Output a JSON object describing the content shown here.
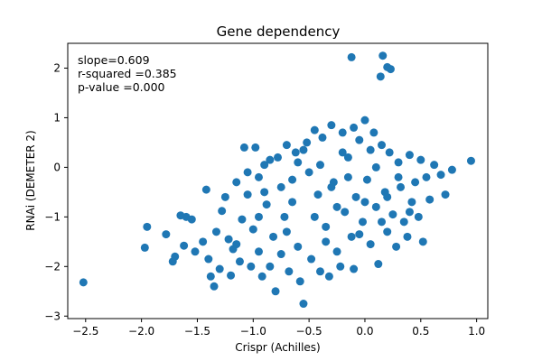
{
  "chart_data": {
    "type": "scatter",
    "title": "Gene dependency",
    "xlabel": "Crispr (Achilles)",
    "ylabel": "RNAi (DEMETER 2)",
    "xlim": [
      -2.66,
      1.1
    ],
    "ylim": [
      -3.05,
      2.5
    ],
    "xticks": [
      -2.5,
      -2.0,
      -1.5,
      -1.0,
      -0.5,
      0.0,
      0.5,
      1.0
    ],
    "xtick_labels": [
      "−2.5",
      "−2.0",
      "−1.5",
      "−1.0",
      "−0.5",
      "0.0",
      "0.5",
      "1.0"
    ],
    "yticks": [
      -3,
      -2,
      -1,
      0,
      1,
      2
    ],
    "ytick_labels": [
      "−3",
      "−2",
      "−1",
      "0",
      "1",
      "2"
    ],
    "grid": false,
    "marker_color": "#1f77b4",
    "annotations": [
      "slope=0.609",
      "r-squared =0.385",
      "p-value =0.000"
    ],
    "points": [
      [
        -2.52,
        -2.32
      ],
      [
        -1.97,
        -1.62
      ],
      [
        -1.95,
        -1.2
      ],
      [
        -1.78,
        -1.35
      ],
      [
        -1.72,
        -1.9
      ],
      [
        -1.7,
        -1.8
      ],
      [
        -1.65,
        -0.97
      ],
      [
        -1.6,
        -1.0
      ],
      [
        -1.62,
        -1.58
      ],
      [
        -1.55,
        -1.05
      ],
      [
        -1.52,
        -1.7
      ],
      [
        -1.45,
        -1.5
      ],
      [
        -1.42,
        -0.45
      ],
      [
        -1.4,
        -1.85
      ],
      [
        -1.38,
        -2.2
      ],
      [
        -1.35,
        -2.4
      ],
      [
        -1.33,
        -1.3
      ],
      [
        -1.3,
        -2.05
      ],
      [
        -1.28,
        -0.88
      ],
      [
        -1.25,
        -0.6
      ],
      [
        -1.22,
        -1.45
      ],
      [
        -1.2,
        -2.18
      ],
      [
        -1.18,
        -1.65
      ],
      [
        -1.15,
        -0.3
      ],
      [
        -1.12,
        -1.9
      ],
      [
        -1.1,
        -1.05
      ],
      [
        -1.08,
        0.4
      ],
      [
        -1.05,
        -0.55
      ],
      [
        -1.02,
        -2.0
      ],
      [
        -1.0,
        -1.25
      ],
      [
        -0.98,
        0.4
      ],
      [
        -0.95,
        -0.2
      ],
      [
        -0.95,
        -1.7
      ],
      [
        -0.92,
        -2.2
      ],
      [
        -0.9,
        0.05
      ],
      [
        -0.88,
        -0.75
      ],
      [
        -0.85,
        -2.0
      ],
      [
        -0.82,
        -1.4
      ],
      [
        -0.8,
        -2.5
      ],
      [
        -0.78,
        0.2
      ],
      [
        -0.75,
        -0.4
      ],
      [
        -0.72,
        -1.0
      ],
      [
        -0.7,
        0.45
      ],
      [
        -0.68,
        -2.1
      ],
      [
        -0.65,
        -0.7
      ],
      [
        -0.62,
        0.3
      ],
      [
        -0.6,
        -1.6
      ],
      [
        -0.58,
        -2.3
      ],
      [
        -0.55,
        -2.75
      ],
      [
        -0.52,
        0.5
      ],
      [
        -0.5,
        -0.1
      ],
      [
        -0.48,
        -1.85
      ],
      [
        -0.45,
        0.75
      ],
      [
        -0.42,
        -0.55
      ],
      [
        -0.4,
        -2.1
      ],
      [
        -0.38,
        0.6
      ],
      [
        -0.35,
        -1.2
      ],
      [
        -0.32,
        -2.2
      ],
      [
        -0.3,
        0.85
      ],
      [
        -0.28,
        -0.3
      ],
      [
        -0.25,
        -1.7
      ],
      [
        -0.22,
        -2.0
      ],
      [
        -0.2,
        0.7
      ],
      [
        -0.18,
        -0.9
      ],
      [
        -0.15,
        0.2
      ],
      [
        -0.12,
        -1.4
      ],
      [
        -0.1,
        0.8
      ],
      [
        -0.1,
        -2.05
      ],
      [
        -0.08,
        -0.6
      ],
      [
        -0.05,
        0.55
      ],
      [
        -0.02,
        -1.1
      ],
      [
        0.0,
        0.95
      ],
      [
        0.02,
        -0.25
      ],
      [
        0.05,
        -1.55
      ],
      [
        0.08,
        0.7
      ],
      [
        0.1,
        -0.8
      ],
      [
        0.12,
        -1.95
      ],
      [
        0.15,
        0.45
      ],
      [
        0.18,
        -0.5
      ],
      [
        0.2,
        -1.3
      ],
      [
        0.22,
        0.3
      ],
      [
        0.25,
        -0.95
      ],
      [
        0.28,
        -1.6
      ],
      [
        0.3,
        0.1
      ],
      [
        0.32,
        -0.4
      ],
      [
        0.35,
        -1.1
      ],
      [
        0.38,
        -1.4
      ],
      [
        0.4,
        0.25
      ],
      [
        0.42,
        -0.7
      ],
      [
        0.45,
        -0.3
      ],
      [
        0.48,
        -1.0
      ],
      [
        0.5,
        0.15
      ],
      [
        0.55,
        -0.2
      ],
      [
        0.58,
        -0.65
      ],
      [
        0.62,
        0.05
      ],
      [
        0.68,
        -0.15
      ],
      [
        0.72,
        -0.55
      ],
      [
        0.78,
        -0.05
      ],
      [
        0.95,
        0.13
      ],
      [
        0.52,
        -1.5
      ],
      [
        -0.12,
        2.22
      ],
      [
        0.16,
        2.25
      ],
      [
        0.2,
        2.02
      ],
      [
        0.23,
        1.98
      ],
      [
        0.14,
        1.83
      ],
      [
        -0.9,
        -0.5
      ],
      [
        -0.6,
        0.1
      ],
      [
        -0.3,
        -0.4
      ],
      [
        0.0,
        -0.7
      ],
      [
        -0.2,
        0.3
      ],
      [
        0.1,
        0.0
      ],
      [
        -0.45,
        -1.0
      ],
      [
        -0.7,
        -1.3
      ],
      [
        0.3,
        -0.2
      ],
      [
        -0.15,
        -0.2
      ],
      [
        -0.55,
        0.35
      ],
      [
        -0.85,
        0.15
      ],
      [
        -0.4,
        0.05
      ],
      [
        0.05,
        0.35
      ],
      [
        0.2,
        -0.6
      ],
      [
        -1.05,
        -0.1
      ],
      [
        -0.65,
        -0.25
      ],
      [
        -0.25,
        -0.8
      ],
      [
        0.15,
        -1.1
      ],
      [
        -0.35,
        -1.5
      ],
      [
        -0.75,
        -1.75
      ],
      [
        -1.15,
        -1.55
      ],
      [
        0.4,
        -0.9
      ],
      [
        -0.05,
        -1.35
      ],
      [
        -0.95,
        -1.0
      ]
    ]
  }
}
